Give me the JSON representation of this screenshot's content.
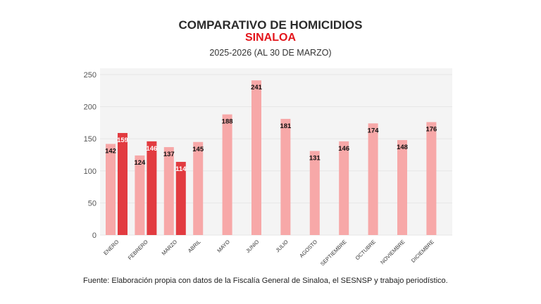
{
  "title": "COMPARATIVO DE HOMICIDIOS",
  "subtitle": "SINALOA",
  "period": "2025-2026 (AL 30 DE MARZO)",
  "source": "Fuente: Elaboración propia con datos de la Fiscalía General de Sinaloa, el SESNSP y trabajo periodístico.",
  "chart_data": {
    "type": "bar",
    "categories": [
      "ENERO",
      "FEBRERO",
      "MARZO",
      "ABRIL",
      "MAYO",
      "JUNIO",
      "JULIO",
      "AGOSTO",
      "SEPTIEMBRE",
      "OCTUBRE",
      "NOVIEMBRE",
      "DICIEMBRE"
    ],
    "series": [
      {
        "values": [
          142,
          124,
          137,
          145,
          188,
          241,
          181,
          131,
          146,
          174,
          148,
          176
        ],
        "color": "#f7a8a8"
      },
      {
        "values": [
          159,
          146,
          114,
          null,
          null,
          null,
          null,
          null,
          null,
          null,
          null,
          null
        ],
        "color": "#e23b40"
      }
    ],
    "yticks": [
      0,
      50,
      100,
      150,
      200,
      250
    ],
    "ylim": [
      0,
      260
    ],
    "grid": true,
    "legend": "none"
  }
}
